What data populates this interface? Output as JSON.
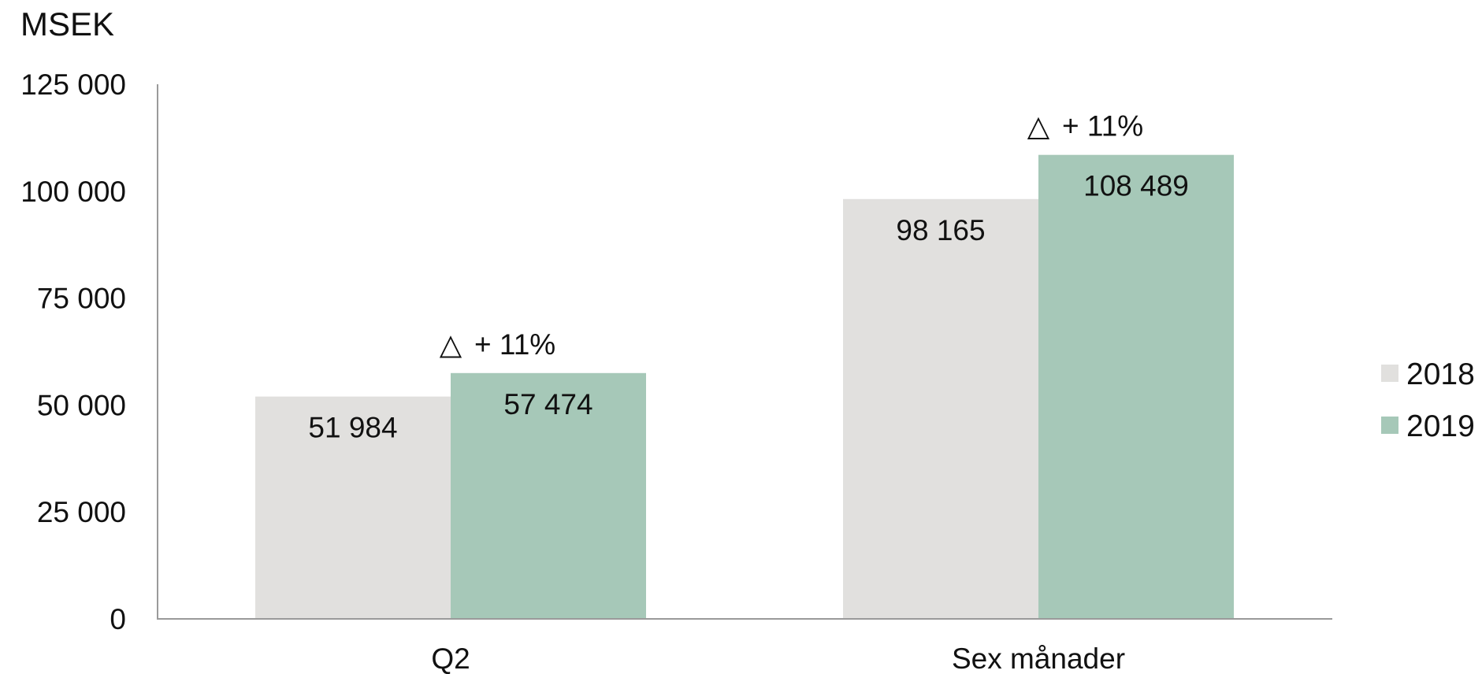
{
  "chart_data": {
    "type": "bar",
    "unit_label": "MSEK",
    "categories": [
      "Q2",
      "Sex månader"
    ],
    "series": [
      {
        "name": "2018",
        "values": [
          51984,
          98165
        ],
        "labels": [
          "51 984",
          "98 165"
        ],
        "color": "#e1e0de"
      },
      {
        "name": "2019",
        "values": [
          57474,
          108489
        ],
        "labels": [
          "57 474",
          "108 489"
        ],
        "color": "#a6c8b8"
      }
    ],
    "change_labels": [
      "+ 11%",
      "+ 11%"
    ],
    "change_symbol": "△",
    "ylim": [
      0,
      125000
    ],
    "yticks": [
      0,
      25000,
      50000,
      75000,
      100000,
      125000
    ],
    "ytick_labels": [
      "0",
      "25 000",
      "50 000",
      "75 000",
      "100 000",
      "125 000"
    ],
    "grid": false,
    "legend_position": "right"
  }
}
